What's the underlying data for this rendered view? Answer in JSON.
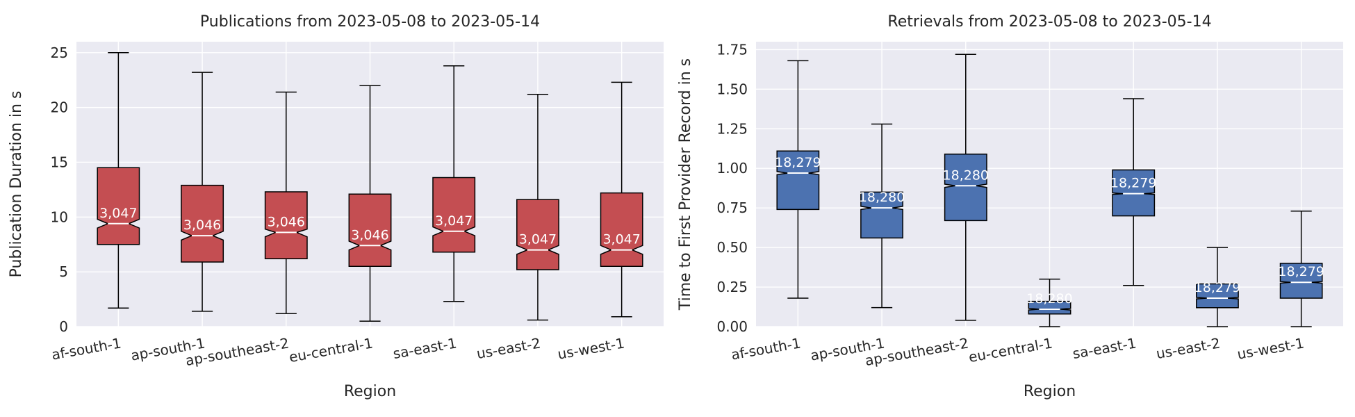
{
  "chart_data": [
    {
      "type": "box",
      "title": "Publications from 2023-05-08 to 2023-05-14",
      "xlabel": "Region",
      "ylabel": "Publication Duration in s",
      "ylim": [
        0,
        26
      ],
      "yticks": [
        0,
        5,
        10,
        15,
        20,
        25
      ],
      "ytick_labels": [
        "0",
        "5",
        "10",
        "15",
        "20",
        "25"
      ],
      "notched": true,
      "grid": true,
      "box_color": "#c44e52",
      "categories": [
        "af-south-1",
        "ap-south-1",
        "ap-southeast-2",
        "eu-central-1",
        "sa-east-1",
        "us-east-2",
        "us-west-1"
      ],
      "boxes": [
        {
          "whisker_low": 1.7,
          "q1": 7.5,
          "median": 9.4,
          "q3": 14.5,
          "whisker_high": 25.0,
          "notch_low": 9.0,
          "notch_high": 9.8,
          "count": "3,047"
        },
        {
          "whisker_low": 1.4,
          "q1": 5.9,
          "median": 8.3,
          "q3": 12.9,
          "whisker_high": 23.2,
          "notch_low": 7.9,
          "notch_high": 8.7,
          "count": "3,046"
        },
        {
          "whisker_low": 1.2,
          "q1": 6.2,
          "median": 8.6,
          "q3": 12.3,
          "whisker_high": 21.4,
          "notch_low": 8.2,
          "notch_high": 8.9,
          "count": "3,046"
        },
        {
          "whisker_low": 0.5,
          "q1": 5.5,
          "median": 7.4,
          "q3": 12.1,
          "whisker_high": 22.0,
          "notch_low": 7.0,
          "notch_high": 7.8,
          "count": "3,046"
        },
        {
          "whisker_low": 2.3,
          "q1": 6.8,
          "median": 8.7,
          "q3": 13.6,
          "whisker_high": 23.8,
          "notch_low": 8.3,
          "notch_high": 9.1,
          "count": "3,047"
        },
        {
          "whisker_low": 0.6,
          "q1": 5.2,
          "median": 7.0,
          "q3": 11.6,
          "whisker_high": 21.2,
          "notch_low": 6.6,
          "notch_high": 7.4,
          "count": "3,047"
        },
        {
          "whisker_low": 0.9,
          "q1": 5.5,
          "median": 7.0,
          "q3": 12.2,
          "whisker_high": 22.3,
          "notch_low": 6.6,
          "notch_high": 7.4,
          "count": "3,047"
        }
      ]
    },
    {
      "type": "box",
      "title": "Retrievals from 2023-05-08 to 2023-05-14",
      "xlabel": "Region",
      "ylabel": "Time to First Provider Record in s",
      "ylim": [
        0,
        1.8
      ],
      "yticks": [
        0,
        0.25,
        0.5,
        0.75,
        1.0,
        1.25,
        1.5,
        1.75
      ],
      "ytick_labels": [
        "0.00",
        "0.25",
        "0.50",
        "0.75",
        "1.00",
        "1.25",
        "1.50",
        "1.75"
      ],
      "notched": true,
      "grid": true,
      "box_color": "#4c72b0",
      "categories": [
        "af-south-1",
        "ap-south-1",
        "ap-southeast-2",
        "eu-central-1",
        "sa-east-1",
        "us-east-2",
        "us-west-1"
      ],
      "boxes": [
        {
          "whisker_low": 0.18,
          "q1": 0.74,
          "median": 0.97,
          "q3": 1.11,
          "whisker_high": 1.68,
          "notch_low": 0.96,
          "notch_high": 0.98,
          "count": "18,279"
        },
        {
          "whisker_low": 0.12,
          "q1": 0.56,
          "median": 0.75,
          "q3": 0.85,
          "whisker_high": 1.28,
          "notch_low": 0.74,
          "notch_high": 0.76,
          "count": "18,280"
        },
        {
          "whisker_low": 0.04,
          "q1": 0.67,
          "median": 0.89,
          "q3": 1.09,
          "whisker_high": 1.72,
          "notch_low": 0.88,
          "notch_high": 0.9,
          "count": "18,280"
        },
        {
          "whisker_low": 0.0,
          "q1": 0.08,
          "median": 0.11,
          "q3": 0.16,
          "whisker_high": 0.3,
          "notch_low": 0.105,
          "notch_high": 0.115,
          "count": "18,280"
        },
        {
          "whisker_low": 0.26,
          "q1": 0.7,
          "median": 0.84,
          "q3": 0.99,
          "whisker_high": 1.44,
          "notch_low": 0.835,
          "notch_high": 0.845,
          "count": "18,279"
        },
        {
          "whisker_low": 0.0,
          "q1": 0.12,
          "median": 0.18,
          "q3": 0.27,
          "whisker_high": 0.5,
          "notch_low": 0.175,
          "notch_high": 0.185,
          "count": "18,279"
        },
        {
          "whisker_low": 0.0,
          "q1": 0.18,
          "median": 0.28,
          "q3": 0.4,
          "whisker_high": 0.73,
          "notch_low": 0.275,
          "notch_high": 0.285,
          "count": "18,279"
        }
      ]
    }
  ]
}
